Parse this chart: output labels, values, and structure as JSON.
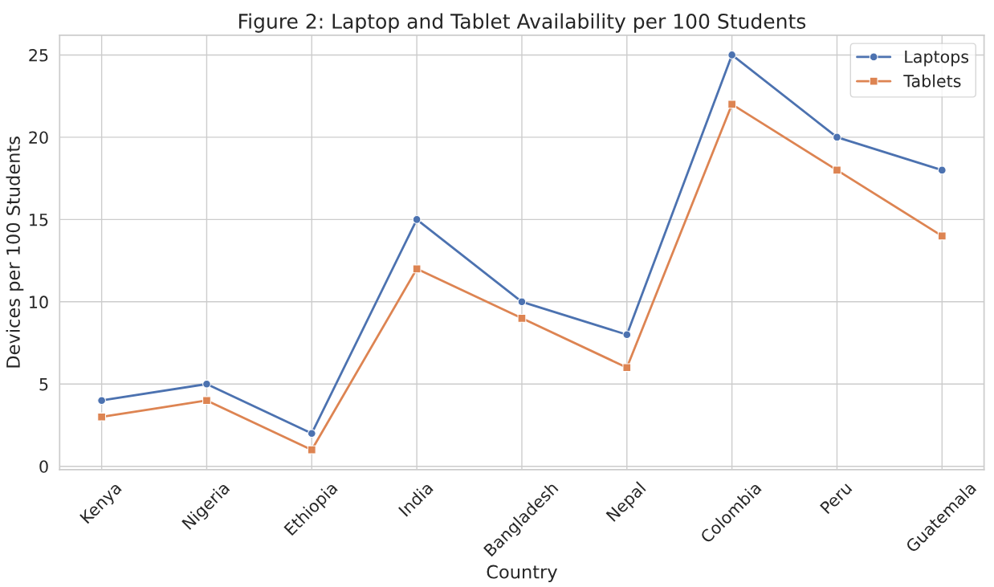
{
  "chart_data": {
    "type": "line",
    "title": "Figure 2: Laptop and Tablet Availability per 100 Students",
    "xlabel": "Country",
    "ylabel": "Devices per 100 Students",
    "categories": [
      "Kenya",
      "Nigeria",
      "Ethiopia",
      "India",
      "Bangladesh",
      "Nepal",
      "Colombia",
      "Peru",
      "Guatemala"
    ],
    "series": [
      {
        "name": "Laptops",
        "color": "#4c72b0",
        "marker": "circle",
        "values": [
          4,
          5,
          2,
          15,
          10,
          8,
          25,
          20,
          18
        ]
      },
      {
        "name": "Tablets",
        "color": "#dd8452",
        "marker": "square",
        "values": [
          3,
          4,
          1,
          12,
          9,
          6,
          22,
          18,
          14
        ]
      }
    ],
    "ylim": [
      -0.2,
      26.2
    ],
    "yticks": [
      0,
      5,
      10,
      15,
      20,
      25
    ],
    "grid": true,
    "legend": "top right",
    "line_style": "solid"
  }
}
